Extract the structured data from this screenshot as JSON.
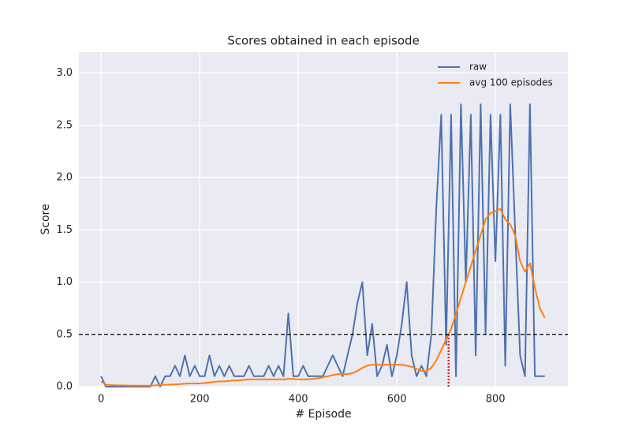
{
  "chart_data": {
    "type": "line",
    "title": "Scores obtained in each episode",
    "x_label": "# Episode",
    "y_label": "Score",
    "x": [
      0,
      10,
      20,
      30,
      40,
      50,
      60,
      70,
      80,
      90,
      100,
      110,
      120,
      130,
      140,
      150,
      160,
      170,
      180,
      190,
      200,
      210,
      220,
      230,
      240,
      250,
      260,
      270,
      280,
      290,
      300,
      310,
      320,
      330,
      340,
      350,
      360,
      370,
      380,
      390,
      400,
      410,
      420,
      430,
      440,
      450,
      460,
      470,
      480,
      490,
      500,
      510,
      520,
      530,
      540,
      550,
      560,
      570,
      580,
      590,
      600,
      610,
      620,
      630,
      640,
      650,
      660,
      670,
      680,
      690,
      700,
      710,
      720,
      730,
      740,
      750,
      760,
      770,
      780,
      790,
      800,
      810,
      820,
      830,
      840,
      850,
      860,
      870,
      880,
      890,
      900
    ],
    "series": [
      {
        "name": "raw",
        "color": "#4c72b0",
        "values": [
          0.1,
          0.0,
          0.0,
          0.0,
          0.0,
          0.0,
          0.0,
          0.0,
          0.0,
          0.0,
          0.0,
          0.1,
          0.0,
          0.1,
          0.1,
          0.2,
          0.1,
          0.3,
          0.1,
          0.2,
          0.1,
          0.1,
          0.3,
          0.1,
          0.2,
          0.1,
          0.2,
          0.1,
          0.1,
          0.1,
          0.2,
          0.1,
          0.1,
          0.1,
          0.2,
          0.1,
          0.2,
          0.1,
          0.7,
          0.1,
          0.1,
          0.2,
          0.1,
          0.1,
          0.1,
          0.1,
          0.2,
          0.3,
          0.2,
          0.1,
          0.3,
          0.5,
          0.8,
          1.0,
          0.3,
          0.6,
          0.1,
          0.2,
          0.4,
          0.1,
          0.3,
          0.6,
          1.0,
          0.3,
          0.1,
          0.2,
          0.1,
          0.5,
          1.7,
          2.6,
          0.4,
          2.6,
          0.1,
          2.7,
          1.0,
          2.6,
          0.3,
          2.7,
          0.5,
          2.6,
          1.2,
          2.6,
          0.2,
          2.7,
          1.5,
          0.3,
          0.1,
          2.7,
          0.1,
          0.1,
          0.1
        ]
      },
      {
        "name": "avg 100 episodes",
        "color": "#ff7f0e",
        "values": [
          0.05,
          0.02,
          0.015,
          0.013,
          0.012,
          0.011,
          0.01,
          0.01,
          0.01,
          0.01,
          0.01,
          0.012,
          0.015,
          0.018,
          0.02,
          0.022,
          0.025,
          0.028,
          0.03,
          0.03,
          0.03,
          0.035,
          0.04,
          0.045,
          0.05,
          0.05,
          0.055,
          0.06,
          0.06,
          0.065,
          0.07,
          0.07,
          0.07,
          0.07,
          0.07,
          0.07,
          0.07,
          0.07,
          0.075,
          0.075,
          0.07,
          0.07,
          0.07,
          0.075,
          0.08,
          0.09,
          0.1,
          0.11,
          0.12,
          0.12,
          0.12,
          0.13,
          0.15,
          0.18,
          0.2,
          0.21,
          0.21,
          0.21,
          0.21,
          0.21,
          0.21,
          0.21,
          0.2,
          0.19,
          0.17,
          0.15,
          0.15,
          0.18,
          0.25,
          0.35,
          0.45,
          0.55,
          0.7,
          0.85,
          1.0,
          1.15,
          1.3,
          1.45,
          1.6,
          1.66,
          1.68,
          1.7,
          1.6,
          1.55,
          1.45,
          1.2,
          1.1,
          1.18,
          0.95,
          0.75,
          0.66
        ]
      }
    ],
    "xlim": [
      -45,
      947
    ],
    "ylim": [
      0,
      3.2
    ],
    "xticks": [
      0,
      200,
      400,
      600,
      800
    ],
    "yticks": [
      {
        "value": 0,
        "label": "0.0"
      },
      {
        "value": 0.5,
        "label": "0.5"
      },
      {
        "value": 1,
        "label": "1.0"
      },
      {
        "value": 1.5,
        "label": "1.5"
      },
      {
        "value": 2,
        "label": "2.0"
      },
      {
        "value": 2.5,
        "label": "2.5"
      },
      {
        "value": 3,
        "label": "3.0"
      }
    ],
    "grid": true,
    "legend": "upper right",
    "hlines": [
      {
        "value": 0.5,
        "color": "#000000",
        "style": "dashed"
      }
    ],
    "vlines": [
      {
        "value": 705,
        "to": 0.5,
        "color": "#d62728",
        "style": "dotted"
      }
    ]
  }
}
